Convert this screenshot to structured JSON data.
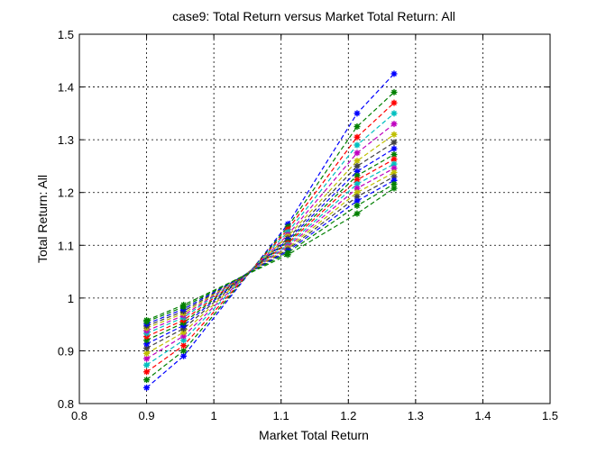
{
  "chart_data": {
    "type": "line",
    "title": "case9: Total Return versus Market Total Return: All",
    "xlabel": "Market Total Return",
    "ylabel": "Total Return: All",
    "xlim": [
      0.8,
      1.5
    ],
    "ylim": [
      0.8,
      1.5
    ],
    "xticks": [
      "0.8",
      "0.9",
      "1",
      "1.1",
      "1.2",
      "1.3",
      "1.4",
      "1.5"
    ],
    "yticks": [
      "0.8",
      "0.9",
      "1",
      "1.1",
      "1.2",
      "1.3",
      "1.4",
      "1.5"
    ],
    "grid": true,
    "line_style": "dashed",
    "marker": "asterisk",
    "x": [
      0.9,
      0.955,
      1.11,
      1.213,
      1.268
    ],
    "series": [
      {
        "color": "#0000ff",
        "values": [
          0.83,
          0.89,
          1.14,
          1.35,
          1.425
        ]
      },
      {
        "color": "#007f00",
        "values": [
          0.845,
          0.9,
          1.135,
          1.325,
          1.39
        ]
      },
      {
        "color": "#ff0000",
        "values": [
          0.86,
          0.91,
          1.13,
          1.305,
          1.37
        ]
      },
      {
        "color": "#00bfbf",
        "values": [
          0.873,
          0.92,
          1.125,
          1.29,
          1.35
        ]
      },
      {
        "color": "#bf00bf",
        "values": [
          0.885,
          0.928,
          1.12,
          1.275,
          1.33
        ]
      },
      {
        "color": "#bfbf00",
        "values": [
          0.895,
          0.935,
          1.117,
          1.26,
          1.31
        ]
      },
      {
        "color": "#404040",
        "values": [
          0.905,
          0.942,
          1.113,
          1.25,
          1.295
        ]
      },
      {
        "color": "#0000ff",
        "values": [
          0.913,
          0.948,
          1.11,
          1.24,
          1.283
        ]
      },
      {
        "color": "#007f00",
        "values": [
          0.92,
          0.953,
          1.107,
          1.232,
          1.272
        ]
      },
      {
        "color": "#ff0000",
        "values": [
          0.927,
          0.958,
          1.104,
          1.224,
          1.263
        ]
      },
      {
        "color": "#00bfbf",
        "values": [
          0.933,
          0.963,
          1.101,
          1.216,
          1.254
        ]
      },
      {
        "color": "#bf00bf",
        "values": [
          0.938,
          0.967,
          1.098,
          1.208,
          1.246
        ]
      },
      {
        "color": "#bfbf00",
        "values": [
          0.943,
          0.971,
          1.095,
          1.2,
          1.238
        ]
      },
      {
        "color": "#404040",
        "values": [
          0.947,
          0.975,
          1.092,
          1.192,
          1.23
        ]
      },
      {
        "color": "#0000ff",
        "values": [
          0.951,
          0.979,
          1.089,
          1.184,
          1.223
        ]
      },
      {
        "color": "#007f00",
        "values": [
          0.955,
          0.983,
          1.086,
          1.175,
          1.216
        ]
      },
      {
        "color": "#007f00",
        "values": [
          0.958,
          0.987,
          1.082,
          1.16,
          1.208
        ]
      }
    ]
  }
}
